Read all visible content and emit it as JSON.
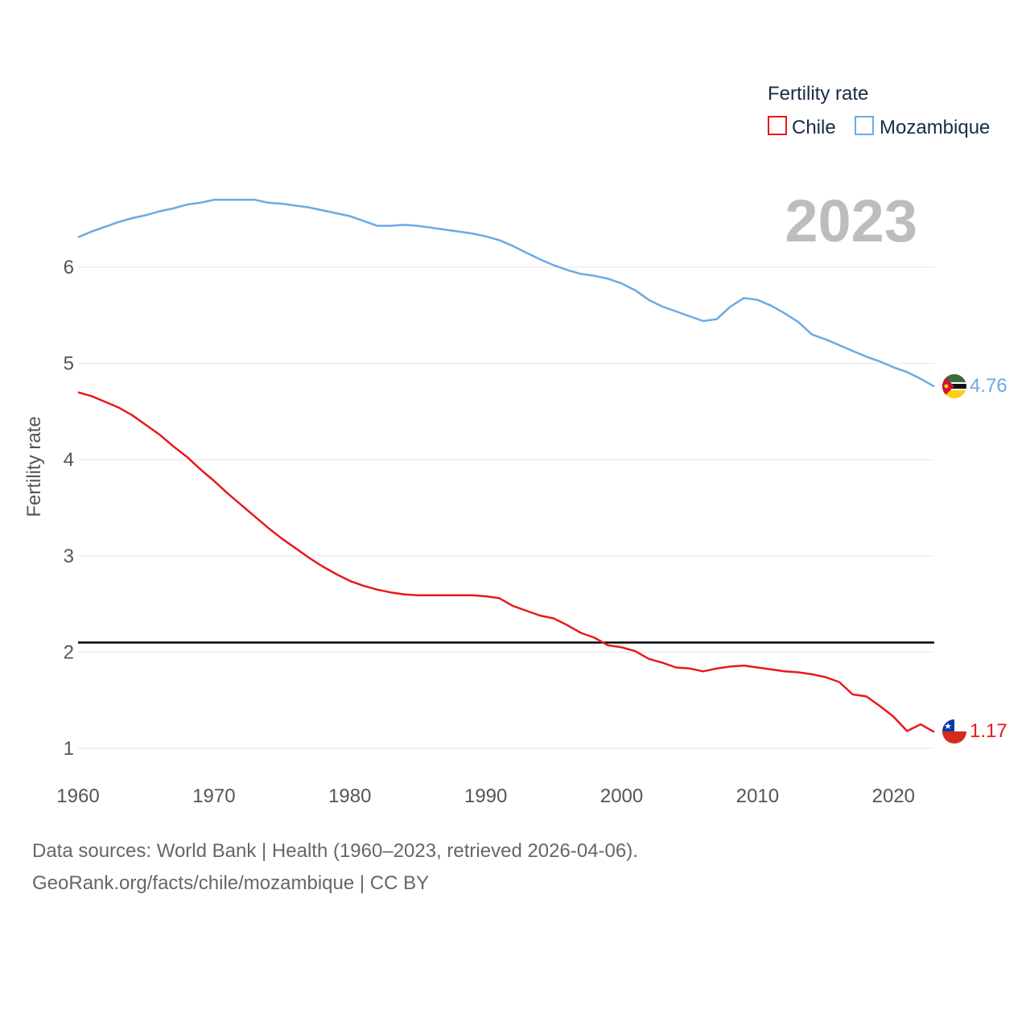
{
  "chart_data": {
    "type": "line",
    "title": "",
    "ylabel": "Fertility rate",
    "xlabel": "",
    "year_label": "2023",
    "legend": {
      "title": "Fertility rate",
      "position": "top-right"
    },
    "xlim": [
      1960,
      2023
    ],
    "ylim": [
      0.75,
      7.3
    ],
    "x_ticks": [
      1960,
      1970,
      1980,
      1990,
      2000,
      2010,
      2020
    ],
    "y_ticks": [
      1,
      2,
      3,
      4,
      5,
      6
    ],
    "reference_line": {
      "y": 2.1,
      "color": "#000000"
    },
    "x": [
      1960,
      1961,
      1962,
      1963,
      1964,
      1965,
      1966,
      1967,
      1968,
      1969,
      1970,
      1971,
      1972,
      1973,
      1974,
      1975,
      1976,
      1977,
      1978,
      1979,
      1980,
      1981,
      1982,
      1983,
      1984,
      1985,
      1986,
      1987,
      1988,
      1989,
      1990,
      1991,
      1992,
      1993,
      1994,
      1995,
      1996,
      1997,
      1998,
      1999,
      2000,
      2001,
      2002,
      2003,
      2004,
      2005,
      2006,
      2007,
      2008,
      2009,
      2010,
      2011,
      2012,
      2013,
      2014,
      2015,
      2016,
      2017,
      2018,
      2019,
      2020,
      2021,
      2022,
      2023
    ],
    "series": [
      {
        "name": "Chile",
        "color": "#e8191c",
        "end_label": "1.17",
        "flag": "chile-flag-icon",
        "values": [
          4.7,
          4.66,
          4.6,
          4.54,
          4.46,
          4.36,
          4.26,
          4.14,
          4.03,
          3.9,
          3.78,
          3.65,
          3.53,
          3.41,
          3.29,
          3.18,
          3.08,
          2.98,
          2.89,
          2.81,
          2.74,
          2.69,
          2.65,
          2.62,
          2.6,
          2.59,
          2.59,
          2.59,
          2.59,
          2.59,
          2.58,
          2.56,
          2.48,
          2.43,
          2.38,
          2.35,
          2.28,
          2.2,
          2.15,
          2.07,
          2.05,
          2.01,
          1.93,
          1.89,
          1.84,
          1.83,
          1.8,
          1.83,
          1.85,
          1.86,
          1.84,
          1.82,
          1.8,
          1.79,
          1.77,
          1.74,
          1.69,
          1.56,
          1.54,
          1.44,
          1.33,
          1.18,
          1.25,
          1.17
        ]
      },
      {
        "name": "Mozambique",
        "color": "#6aaae4",
        "end_label": "4.76",
        "flag": "mozambique-flag-icon",
        "values": [
          6.31,
          6.37,
          6.42,
          6.47,
          6.51,
          6.54,
          6.58,
          6.61,
          6.65,
          6.67,
          6.7,
          6.7,
          6.7,
          6.7,
          6.67,
          6.66,
          6.64,
          6.62,
          6.59,
          6.56,
          6.53,
          6.48,
          6.43,
          6.43,
          6.44,
          6.43,
          6.41,
          6.39,
          6.37,
          6.35,
          6.32,
          6.28,
          6.22,
          6.15,
          6.08,
          6.02,
          5.97,
          5.93,
          5.91,
          5.88,
          5.83,
          5.76,
          5.66,
          5.59,
          5.54,
          5.49,
          5.44,
          5.46,
          5.59,
          5.68,
          5.66,
          5.6,
          5.52,
          5.43,
          5.3,
          5.25,
          5.19,
          5.13,
          5.07,
          5.02,
          4.96,
          4.91,
          4.84,
          4.76
        ]
      }
    ]
  },
  "source": {
    "line1": "Data sources: World Bank | Health (1960–2023, retrieved 2026-04-06).",
    "line2": "GeoRank.org/facts/chile/mozambique | CC BY"
  }
}
